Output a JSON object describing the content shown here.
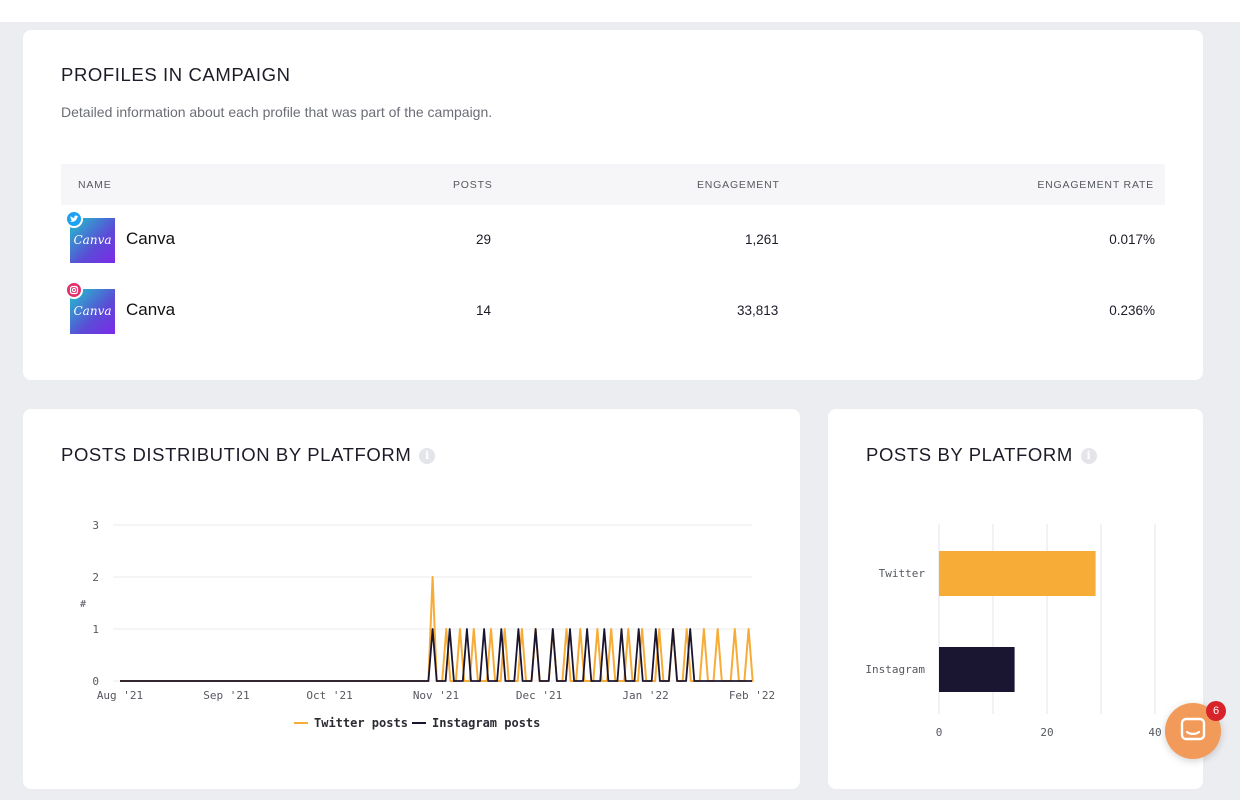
{
  "profiles": {
    "title": "PROFILES IN CAMPAIGN",
    "subtitle": "Detailed information about each profile that was part of the campaign.",
    "columns": [
      "NAME",
      "POSTS",
      "ENGAGEMENT",
      "ENGAGEMENT RATE"
    ],
    "rows": [
      {
        "platform_icon": "twitter-icon",
        "avatar_text": "Canva",
        "name": "Canva",
        "posts": "29",
        "engagement": "1,261",
        "engagement_rate": "0.017%"
      },
      {
        "platform_icon": "instagram-icon",
        "avatar_text": "Canva",
        "name": "Canva",
        "posts": "14",
        "engagement": "33,813",
        "engagement_rate": "0.236%"
      }
    ]
  },
  "distribution": {
    "title": "POSTS DISTRIBUTION BY PLATFORM",
    "info_icon": "info-icon"
  },
  "platform": {
    "title": "POSTS BY PLATFORM",
    "info_icon": "info-icon"
  },
  "chat": {
    "icon": "chat-icon",
    "badge": "6"
  },
  "colors": {
    "twitter": "#f7ac38",
    "instagram": "#1a1530",
    "twitter_badge": "#1da1f2",
    "instagram_badge": "#e1306c"
  },
  "chart_data": [
    {
      "type": "line",
      "ylabel": "#",
      "ylim": [
        0,
        3
      ],
      "yticks": [
        "0",
        "1",
        "2",
        "3"
      ],
      "xticks": [
        "Aug '21",
        "Sep '21",
        "Oct '21",
        "Nov '21",
        "Dec '21",
        "Jan '22",
        "Feb '22"
      ],
      "x_range": [
        "2021-08-01",
        "2022-02-01"
      ],
      "grid": true,
      "legend": "bottom",
      "series": [
        {
          "name": "Twitter posts",
          "color": "#f7ac38",
          "points": [
            [
              "2021-10-31",
              2
            ],
            [
              "2021-11-04",
              1
            ],
            [
              "2021-11-08",
              1
            ],
            [
              "2021-11-12",
              1
            ],
            [
              "2021-11-17",
              1
            ],
            [
              "2021-11-21",
              1
            ],
            [
              "2021-11-26",
              1
            ],
            [
              "2021-11-30",
              1
            ],
            [
              "2021-12-05",
              1
            ],
            [
              "2021-12-09",
              1
            ],
            [
              "2021-12-13",
              1
            ],
            [
              "2021-12-18",
              1
            ],
            [
              "2021-12-22",
              1
            ],
            [
              "2021-12-27",
              1
            ],
            [
              "2021-12-31",
              1
            ],
            [
              "2022-01-05",
              1
            ],
            [
              "2022-01-09",
              1
            ],
            [
              "2022-01-13",
              1
            ],
            [
              "2022-01-18",
              1
            ],
            [
              "2022-01-22",
              1
            ],
            [
              "2022-01-27",
              1
            ],
            [
              "2022-01-31",
              1
            ]
          ]
        },
        {
          "name": "Instagram posts",
          "color": "#1a1530",
          "points": [
            [
              "2021-10-31",
              1
            ],
            [
              "2021-11-05",
              1
            ],
            [
              "2021-11-10",
              1
            ],
            [
              "2021-11-15",
              1
            ],
            [
              "2021-11-20",
              1
            ],
            [
              "2021-11-25",
              1
            ],
            [
              "2021-11-30",
              1
            ],
            [
              "2021-12-05",
              1
            ],
            [
              "2021-12-10",
              1
            ],
            [
              "2021-12-15",
              1
            ],
            [
              "2021-12-20",
              1
            ],
            [
              "2021-12-25",
              1
            ],
            [
              "2021-12-30",
              1
            ],
            [
              "2022-01-04",
              1
            ],
            [
              "2022-01-09",
              1
            ],
            [
              "2022-01-14",
              1
            ]
          ]
        }
      ]
    },
    {
      "type": "bar",
      "orientation": "horizontal",
      "categories": [
        "Twitter",
        "Instagram"
      ],
      "values": [
        29,
        14
      ],
      "colors": [
        "#f7ac38",
        "#1a1530"
      ],
      "xlim": [
        0,
        40
      ],
      "xticks": [
        "0",
        "20",
        "40"
      ],
      "grid": true
    }
  ]
}
